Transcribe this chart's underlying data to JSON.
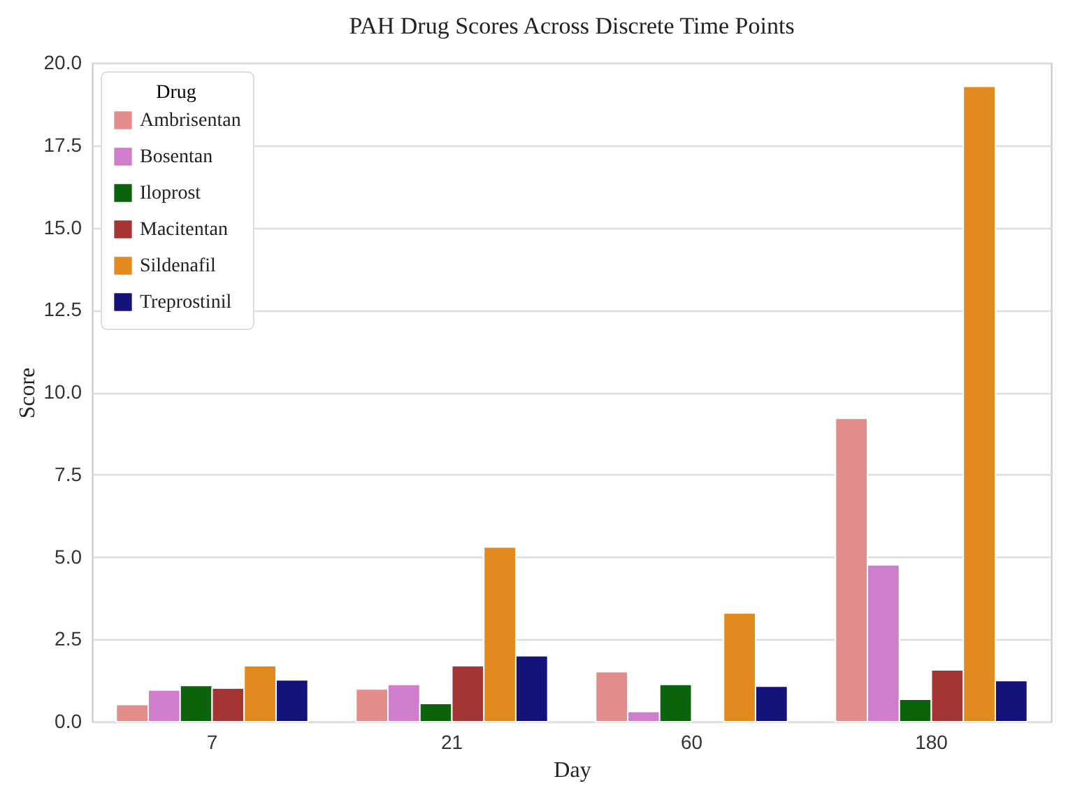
{
  "chart_data": {
    "type": "bar",
    "title": "PAH Drug Scores Across Discrete Time Points",
    "xlabel": "Day",
    "ylabel": "Score",
    "legend_title": "Drug",
    "legend": "top left",
    "grid": "y",
    "categories": [
      "7",
      "21",
      "60",
      "180"
    ],
    "series": [
      {
        "name": "Ambrisentan",
        "color": "#e28c8c",
        "values": [
          0.52,
          0.99,
          1.52,
          9.21
        ]
      },
      {
        "name": "Bosentan",
        "color": "#cf7ecb",
        "values": [
          0.96,
          1.13,
          0.31,
          4.76
        ]
      },
      {
        "name": "Iloprost",
        "color": "#0b640b",
        "values": [
          1.1,
          0.55,
          1.13,
          0.68
        ]
      },
      {
        "name": "Macitentan",
        "color": "#a53535",
        "values": [
          1.02,
          1.7,
          null,
          1.57
        ]
      },
      {
        "name": "Sildenafil",
        "color": "#e28a1e",
        "values": [
          1.7,
          5.3,
          3.3,
          19.29
        ]
      },
      {
        "name": "Treprostinil",
        "color": "#13137a",
        "values": [
          1.27,
          2.0,
          1.08,
          1.25
        ]
      }
    ],
    "ylim": [
      0,
      20
    ],
    "yticks": [
      {
        "value": 0,
        "label": "0.0"
      },
      {
        "value": 2.5,
        "label": "2.5"
      },
      {
        "value": 5,
        "label": "5.0"
      },
      {
        "value": 7.5,
        "label": "7.5"
      },
      {
        "value": 10,
        "label": "10.0"
      },
      {
        "value": 12.5,
        "label": "12.5"
      },
      {
        "value": 15,
        "label": "15.0"
      },
      {
        "value": 17.5,
        "label": "17.5"
      },
      {
        "value": 20,
        "label": "20.0"
      }
    ]
  }
}
